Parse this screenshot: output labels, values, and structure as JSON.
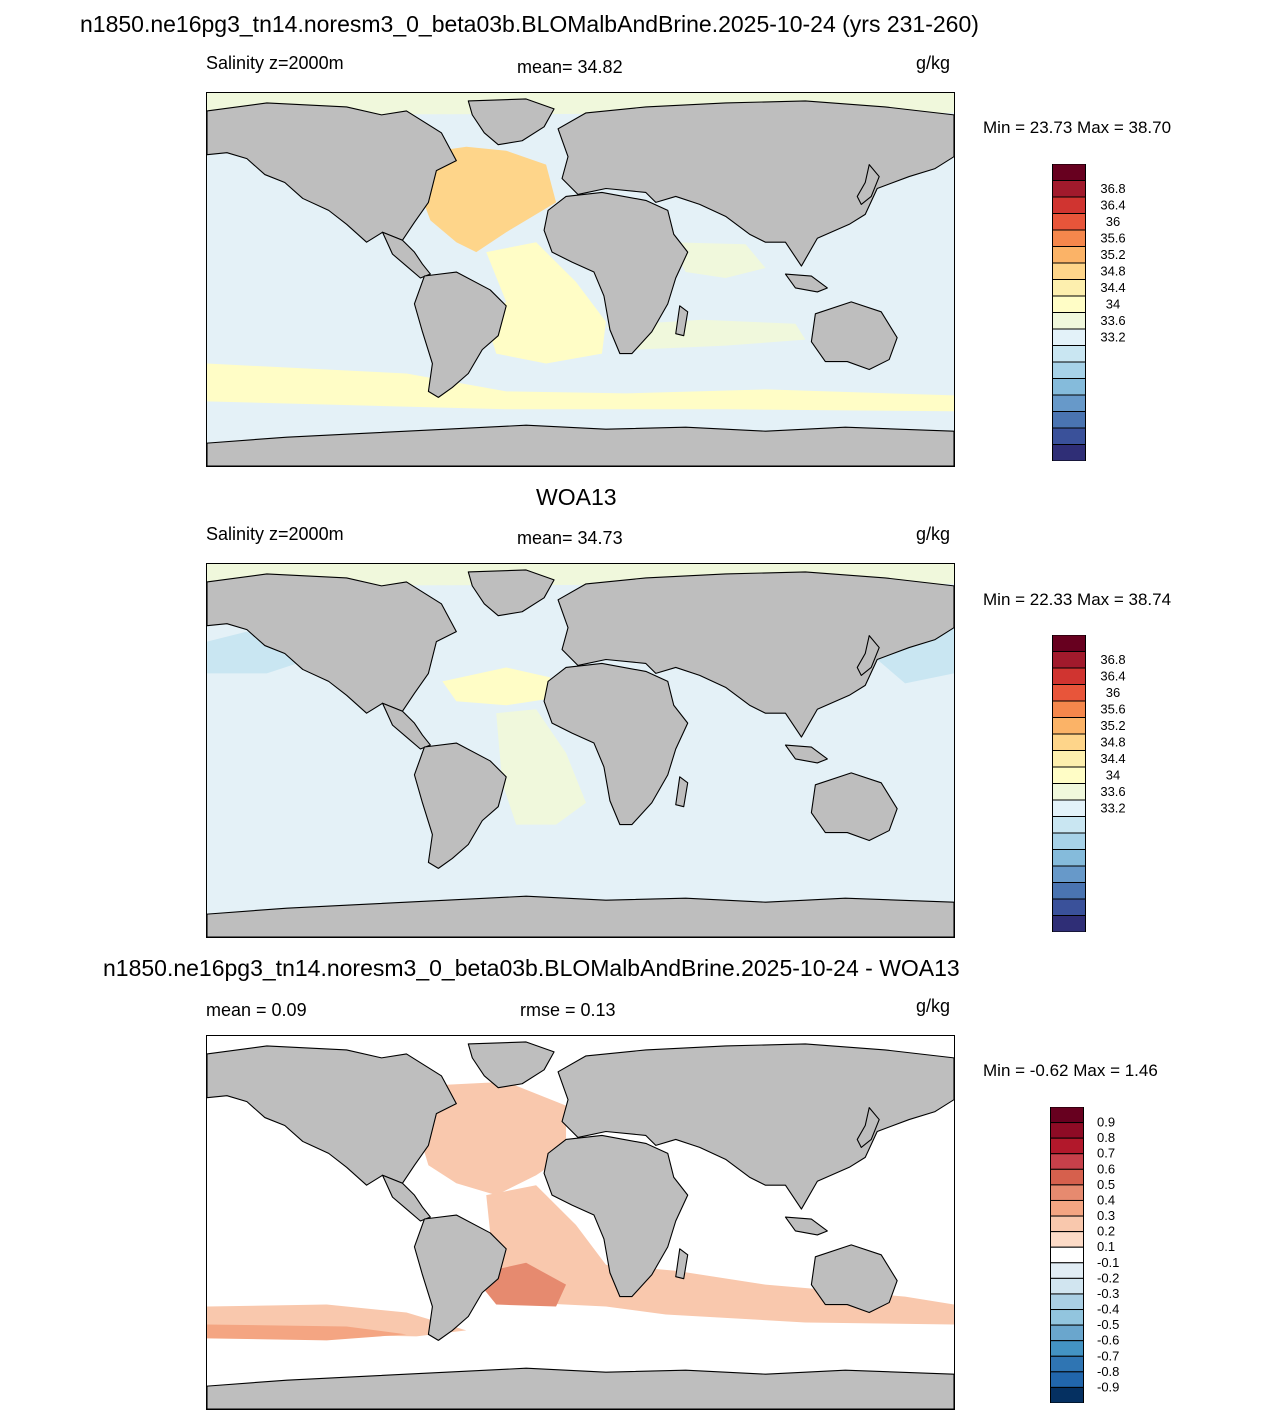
{
  "panels": [
    {
      "id": "model",
      "title": "n1850.ne16pg3_tn14.noresm3_0_beta03b.BLOMalbAndBrine.2025-10-24 (yrs 231-260)",
      "left_label": "Salinity z=2000m",
      "center_label": "mean=  34.82",
      "units": "g/kg",
      "min_max": "Min =  23.73 Max =  38.70",
      "colorbar_labels": [
        "36.8",
        "36.4",
        "36",
        "35.6",
        "35.2",
        "34.8",
        "34.4",
        "34",
        "33.6",
        "33.2"
      ],
      "colorbar_colors": [
        "#67001f",
        "#a11a2c",
        "#d03430",
        "#e8553a",
        "#f5874c",
        "#fbb367",
        "#fed58a",
        "#fdefae",
        "#fffdc6",
        "#f0f8dc",
        "#e3f2f9",
        "#c9e6f2",
        "#a7d2e8",
        "#85bbdb",
        "#6799c9",
        "#4a74b1",
        "#3a519a",
        "#2f2e76"
      ],
      "ocean_fill": "#e4f1f7"
    },
    {
      "id": "obs",
      "title": "WOA13",
      "left_label": "Salinity z=2000m",
      "center_label": "mean=  34.73",
      "units": "g/kg",
      "min_max": "Min =  22.33 Max =  38.74",
      "colorbar_labels": [
        "36.8",
        "36.4",
        "36",
        "35.6",
        "35.2",
        "34.8",
        "34.4",
        "34",
        "33.6",
        "33.2"
      ],
      "colorbar_colors": [
        "#67001f",
        "#a11a2c",
        "#d03430",
        "#e8553a",
        "#f5874c",
        "#fbb367",
        "#fed58a",
        "#fdefae",
        "#fffdc6",
        "#f0f8dc",
        "#e3f2f9",
        "#c9e6f2",
        "#a7d2e8",
        "#85bbdb",
        "#6799c9",
        "#4a74b1",
        "#3a519a",
        "#2f2e76"
      ],
      "ocean_fill": "#e4f1f7"
    },
    {
      "id": "diff",
      "title": "n1850.ne16pg3_tn14.noresm3_0_beta03b.BLOMalbAndBrine.2025-10-24 - WOA13",
      "left_label": "mean =   0.09",
      "center_label": "rmse =   0.13",
      "units": "g/kg",
      "min_max": "Min =  -0.62 Max =   1.46",
      "colorbar_labels": [
        "0.9",
        "0.8",
        "0.7",
        "0.6",
        "0.5",
        "0.4",
        "0.3",
        "0.2",
        "0.1",
        "-0.1",
        "-0.2",
        "-0.3",
        "-0.4",
        "-0.5",
        "-0.6",
        "-0.7",
        "-0.8",
        "-0.9"
      ],
      "colorbar_colors": [
        "#67001f",
        "#8e0b25",
        "#b2182b",
        "#c7404a",
        "#d6604d",
        "#e68a6f",
        "#f4a582",
        "#f9c8ad",
        "#fddbc7",
        "#ffffff",
        "#e1edf5",
        "#d1e5f0",
        "#aacfe4",
        "#92c5de",
        "#6aa6cd",
        "#4393c3",
        "#2f75b3",
        "#2166ac",
        "#053061"
      ],
      "ocean_fill": "#ffffff"
    }
  ],
  "land_color": "#bebebe",
  "coastline_color": "#000000"
}
